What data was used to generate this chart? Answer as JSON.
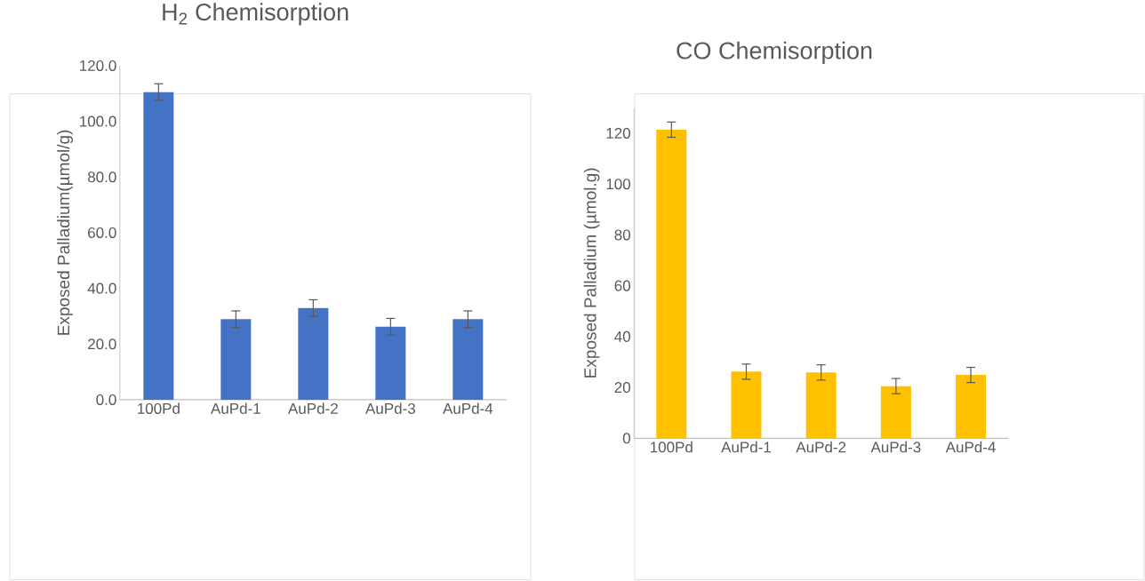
{
  "chart_data": [
    {
      "type": "bar",
      "title": "H$_{2}$ Chemisorption",
      "ylabel": "Exposed Palladium(µmol/g)",
      "categories": [
        "100Pd",
        "AuPd-1",
        "AuPd-2",
        "AuPd-3",
        "AuPd-4"
      ],
      "values": [
        110.5,
        28.9,
        32.9,
        26.2,
        28.9
      ],
      "errors": [
        3,
        3,
        3,
        3,
        3
      ],
      "color": "#4472c4",
      "ylim": [
        0,
        120
      ],
      "yticks": [
        {
          "value": 0,
          "label": "0.0"
        },
        {
          "value": 20,
          "label": "20.0"
        },
        {
          "value": 40,
          "label": "40.0"
        },
        {
          "value": 60,
          "label": "60.0"
        },
        {
          "value": 80,
          "label": "80.0"
        },
        {
          "value": 100,
          "label": "100.0"
        },
        {
          "value": 120,
          "label": "120.0"
        }
      ]
    },
    {
      "type": "bar",
      "title": "CO Chemisorption",
      "ylabel": "Exposed Palladium (µmol.g)",
      "categories": [
        "100Pd",
        "AuPd-1",
        "AuPd-2",
        "AuPd-3",
        "AuPd-4"
      ],
      "values": [
        121.4,
        26.2,
        25.9,
        20.5,
        24.9
      ],
      "errors": [
        3,
        3,
        3,
        3,
        3
      ],
      "color": "#ffc000",
      "ylim": [
        0,
        130
      ],
      "yticks": [
        0,
        20,
        40,
        60,
        80,
        100,
        120
      ]
    }
  ]
}
